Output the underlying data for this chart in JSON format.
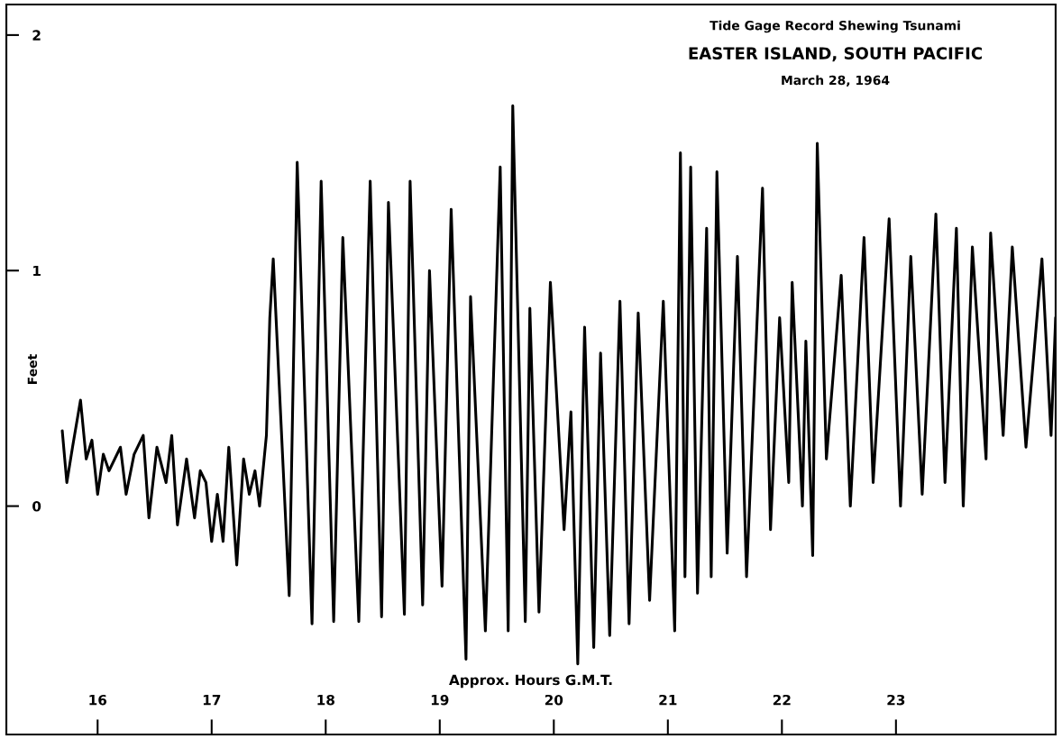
{
  "chart_data": {
    "type": "line",
    "title": "Tide Gage Record Shewing Tsunami",
    "subtitle": "EASTER ISLAND, SOUTH PACIFIC",
    "annotations": [
      "March 28, 1964"
    ],
    "xlabel": "Approx. Hours G.M.T.",
    "ylabel": "Feet",
    "xlim": [
      15.2,
      24.4
    ],
    "ylim": [
      -0.97,
      2.13
    ],
    "xticks": [
      16,
      17,
      18,
      19,
      20,
      21,
      22,
      23
    ],
    "yticks": [
      0,
      1,
      2
    ],
    "grid": false,
    "series": [
      {
        "color": "#000000",
        "x": [
          15.69,
          15.73,
          15.78,
          15.85,
          15.9,
          15.95,
          16.0,
          16.05,
          16.1,
          16.2,
          16.25,
          16.32,
          16.4,
          16.45,
          16.52,
          16.6,
          16.65,
          16.7,
          16.78,
          16.85,
          16.9,
          16.95,
          17.0,
          17.05,
          17.1,
          17.15,
          17.22,
          17.28,
          17.33,
          17.38,
          17.42,
          17.48,
          17.51,
          17.54,
          17.68,
          17.75,
          17.88,
          17.96,
          18.07,
          18.15,
          18.29,
          18.39,
          18.49,
          18.55,
          18.69,
          18.74,
          18.85,
          18.91,
          19.02,
          19.1,
          19.23,
          19.27,
          19.4,
          19.53,
          19.6,
          19.64,
          19.75,
          19.79,
          19.87,
          19.97,
          20.09,
          20.15,
          20.21,
          20.27,
          20.35,
          20.41,
          20.49,
          20.58,
          20.66,
          20.74,
          20.84,
          20.96,
          21.06,
          21.11,
          21.15,
          21.2,
          21.26,
          21.34,
          21.38,
          21.43,
          21.52,
          21.61,
          21.69,
          21.83,
          21.9,
          21.98,
          22.06,
          22.09,
          22.18,
          22.21,
          22.27,
          22.31,
          22.39,
          22.52,
          22.6,
          22.72,
          22.8,
          22.94,
          23.04,
          23.13,
          23.23,
          23.35,
          23.43,
          23.53,
          23.59,
          23.67,
          23.79,
          23.83,
          23.94,
          24.02,
          24.14,
          24.28,
          24.36,
          24.4
        ],
        "values": [
          0.32,
          0.1,
          0.25,
          0.45,
          0.2,
          0.28,
          0.05,
          0.22,
          0.15,
          0.25,
          0.05,
          0.22,
          0.3,
          -0.05,
          0.25,
          0.1,
          0.3,
          -0.08,
          0.2,
          -0.05,
          0.15,
          0.1,
          -0.15,
          0.05,
          -0.15,
          0.25,
          -0.25,
          0.2,
          0.05,
          0.15,
          0.0,
          0.3,
          0.8,
          1.05,
          -0.38,
          1.46,
          -0.5,
          1.38,
          -0.49,
          1.14,
          -0.49,
          1.38,
          -0.47,
          1.29,
          -0.46,
          1.38,
          -0.42,
          1.0,
          -0.34,
          1.26,
          -0.65,
          0.89,
          -0.53,
          1.44,
          -0.53,
          1.7,
          -0.49,
          0.84,
          -0.45,
          0.95,
          -0.1,
          0.4,
          -0.67,
          0.76,
          -0.6,
          0.65,
          -0.55,
          0.87,
          -0.5,
          0.82,
          -0.4,
          0.87,
          -0.53,
          1.5,
          -0.3,
          1.44,
          -0.37,
          1.18,
          -0.3,
          1.42,
          -0.2,
          1.06,
          -0.3,
          1.35,
          -0.1,
          0.8,
          0.1,
          0.95,
          0.0,
          0.7,
          -0.21,
          1.54,
          0.2,
          0.98,
          0.0,
          1.14,
          0.1,
          1.22,
          0.0,
          1.06,
          0.05,
          1.24,
          0.1,
          1.18,
          0.0,
          1.1,
          0.2,
          1.16,
          0.3,
          1.1,
          0.25,
          1.05,
          0.3,
          0.8
        ]
      }
    ]
  }
}
